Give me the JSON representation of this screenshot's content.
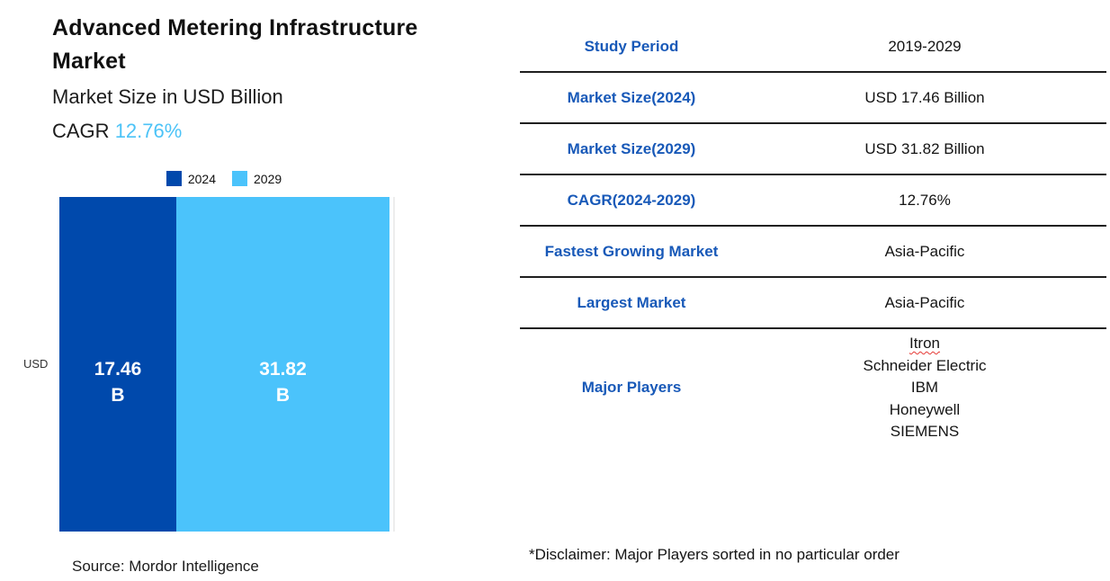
{
  "header": {
    "title": "Advanced Metering Infrastructure Market",
    "subtitle": "Market Size in USD Billion",
    "cagr_label": "CAGR ",
    "cagr_value": "12.76%"
  },
  "chart_data": {
    "type": "bar",
    "variant": "horizontal-stacked-single-bar",
    "title": "Advanced Metering Infrastructure Market",
    "subtitle": "Market Size in USD Billion",
    "unit": "USD Billion",
    "axis_label": "USD",
    "categories": [
      "2024",
      "2029"
    ],
    "values": [
      17.46,
      31.82
    ],
    "series": [
      {
        "name": "2024",
        "value": 17.46,
        "display": "17.46",
        "suffix": "B",
        "color": "#0049ac"
      },
      {
        "name": "2029",
        "value": 31.82,
        "display": "31.82",
        "suffix": "B",
        "color": "#4bc3fb"
      }
    ],
    "legend_position": "top",
    "cagr": "12.76%"
  },
  "source_note": "Source: Mordor Intelligence",
  "facts_table": {
    "rows": [
      {
        "label": "Study Period",
        "value": "2019-2029"
      },
      {
        "label": "Market Size(2024)",
        "value": "USD 17.46 Billion"
      },
      {
        "label": "Market Size(2029)",
        "value": "USD 31.82 Billion"
      },
      {
        "label": "CAGR(2024-2029)",
        "value": "12.76%"
      },
      {
        "label": "Fastest Growing Market",
        "value": "Asia-Pacific"
      },
      {
        "label": "Largest Market",
        "value": "Asia-Pacific"
      },
      {
        "label": "Major Players",
        "players": [
          "Itron",
          "Schneider Electric",
          "IBM",
          "Honeywell",
          "SIEMENS"
        ]
      }
    ],
    "misspelled_players": [
      "Itron"
    ]
  },
  "disclaimer": "*Disclaimer: Major Players sorted in no particular order",
  "colors": {
    "bar_2024": "#0049ac",
    "bar_2029": "#4bc3fb",
    "cagr_accent": "#4cc3f7",
    "table_label_blue": "#1859b8",
    "divider": "#1f1f1f",
    "gridline": "#ededed",
    "spellcheck_underline_red": "#e53935",
    "text": "#1a1a1a"
  }
}
